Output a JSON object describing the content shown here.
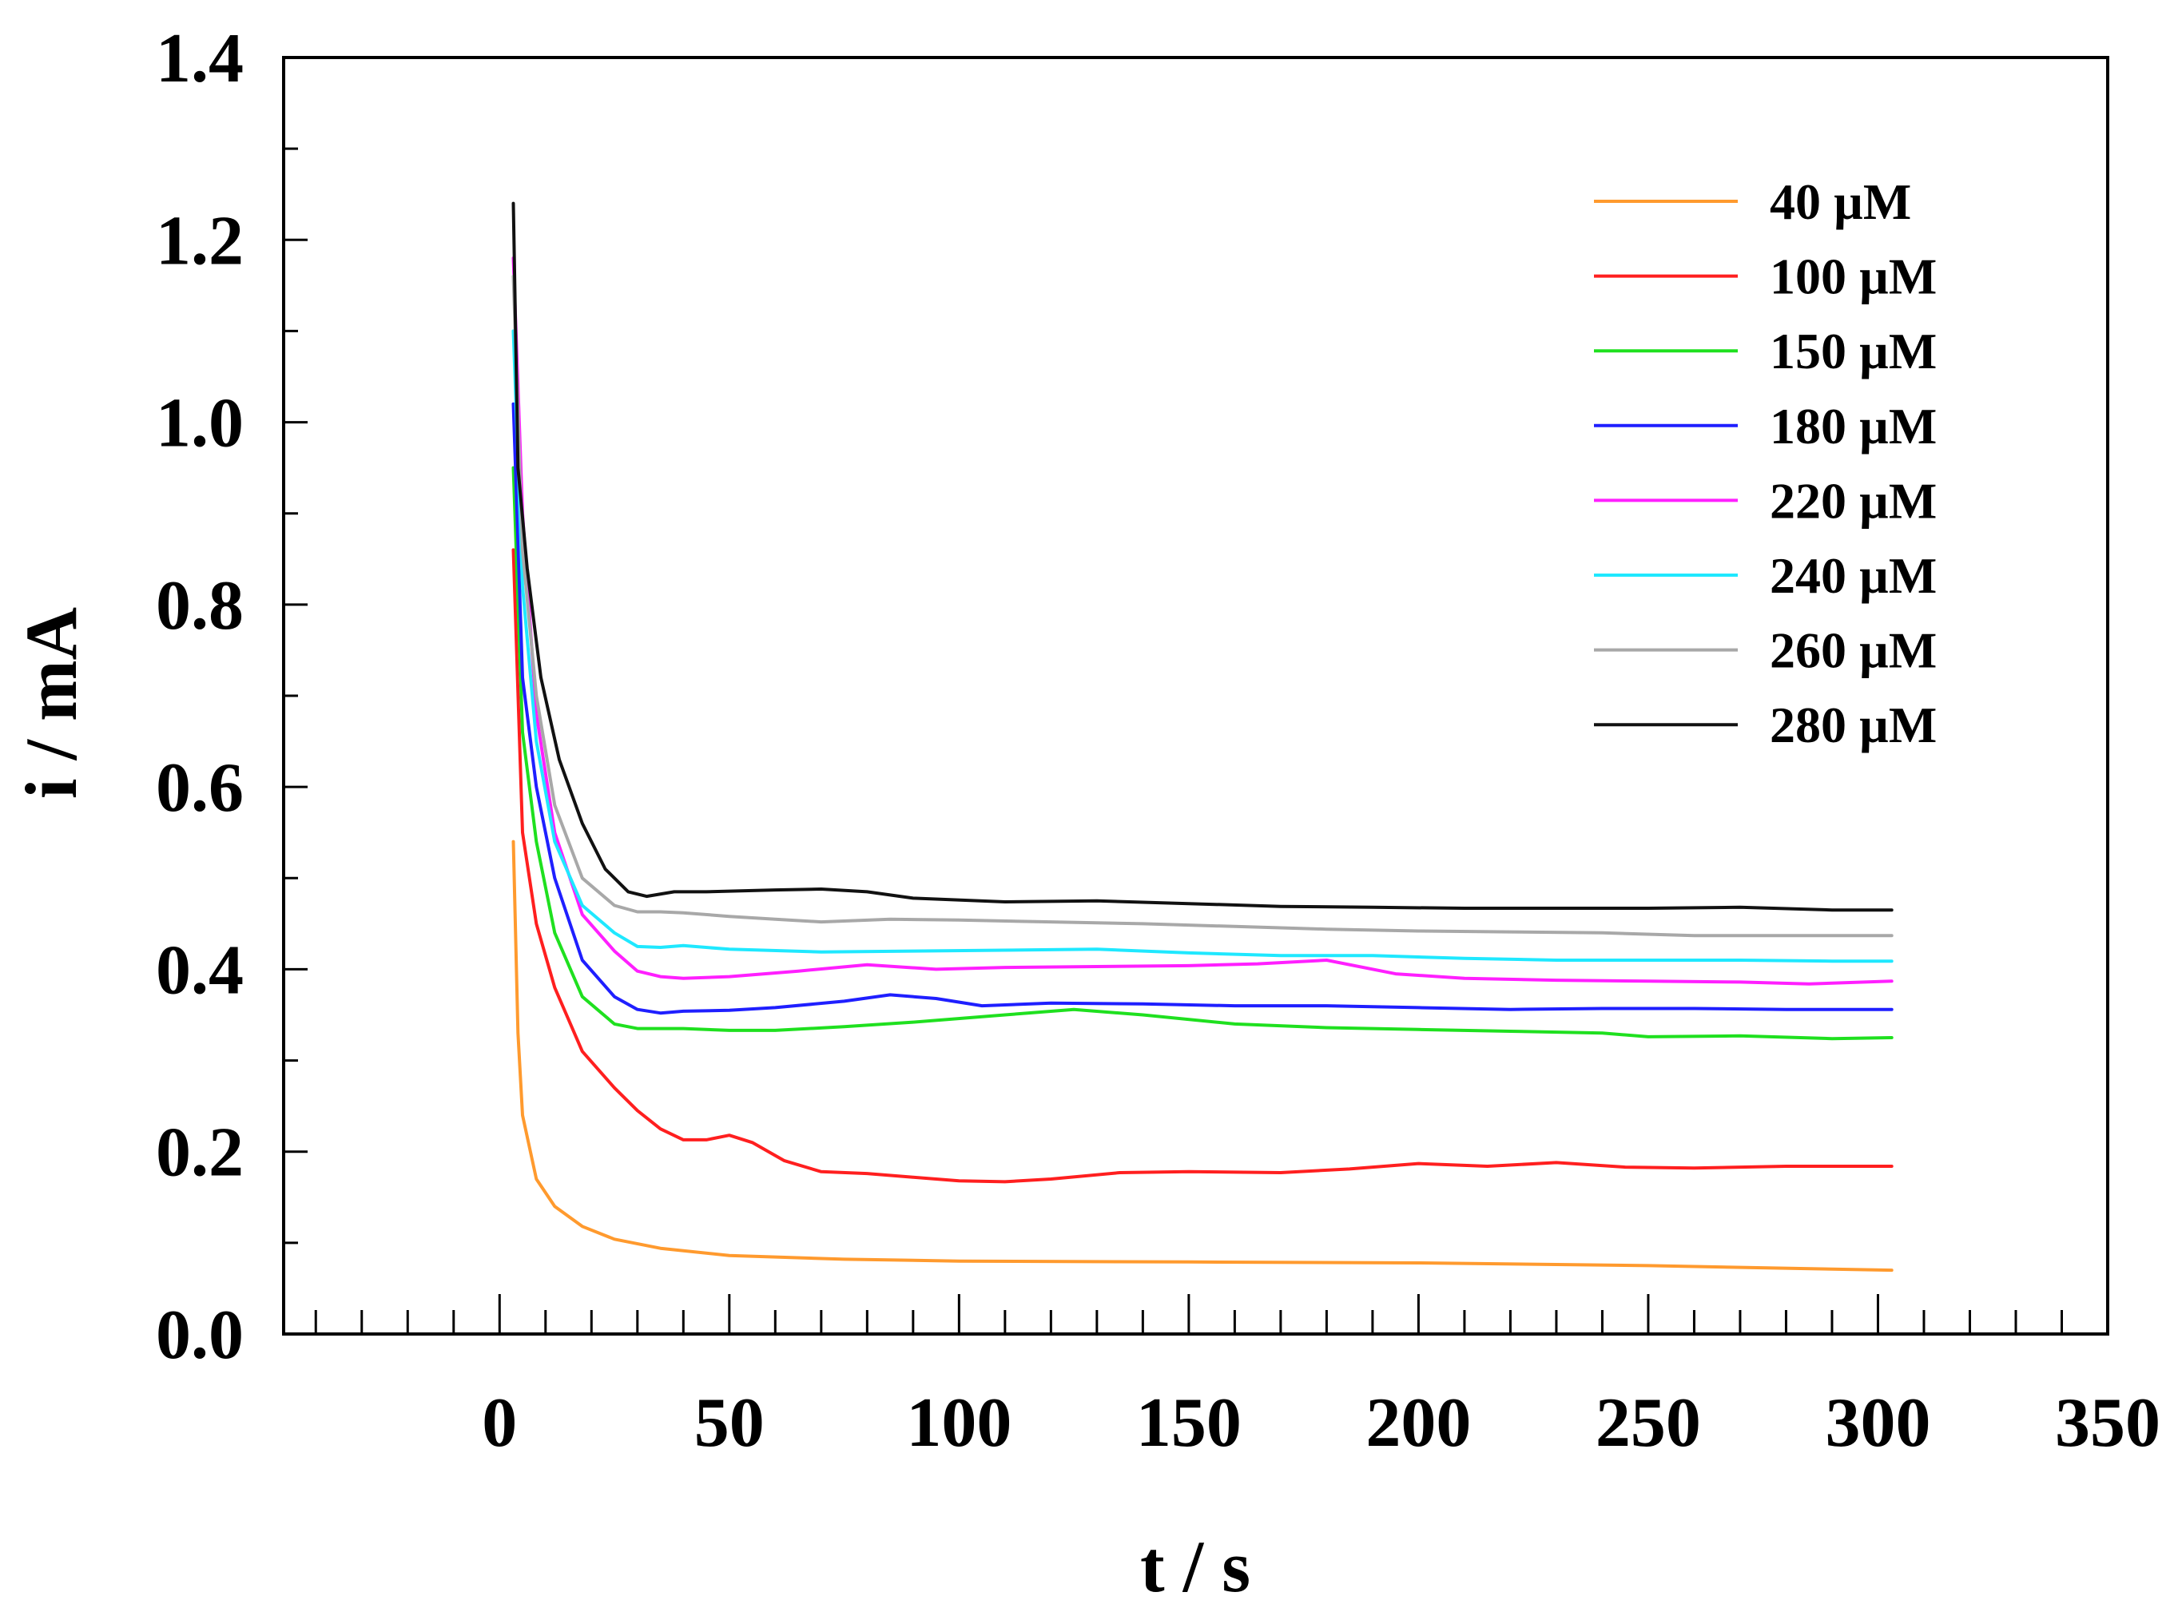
{
  "chart_data": {
    "type": "line",
    "title": "",
    "xlabel": "t / s",
    "ylabel": "i / mA",
    "xlim": [
      -47,
      350
    ],
    "ylim": [
      0,
      1.4
    ],
    "xticks": [
      0,
      50,
      100,
      150,
      200,
      250,
      300,
      350
    ],
    "xtick_labels": [
      "0",
      "50",
      "100",
      "150",
      "200",
      "250",
      "300",
      "350"
    ],
    "yticks": [
      0.0,
      0.2,
      0.4,
      0.6,
      0.8,
      1.0,
      1.2,
      1.4
    ],
    "ytick_labels": [
      "0.0",
      "0.2",
      "0.4",
      "0.6",
      "0.8",
      "1.0",
      "1.2",
      "1.4"
    ],
    "grid": false,
    "legend_position": "top-right",
    "series": [
      {
        "name": "40 µM",
        "color": "#ff9a2e",
        "x": [
          3,
          4,
          5,
          8,
          12,
          18,
          25,
          35,
          50,
          75,
          100,
          150,
          200,
          250,
          303
        ],
        "y": [
          0.54,
          0.33,
          0.24,
          0.17,
          0.14,
          0.118,
          0.104,
          0.094,
          0.086,
          0.082,
          0.08,
          0.079,
          0.078,
          0.075,
          0.07
        ]
      },
      {
        "name": "100 µM",
        "color": "#ff1f1f",
        "x": [
          3,
          5,
          8,
          12,
          18,
          25,
          30,
          35,
          40,
          45,
          50,
          55,
          62,
          70,
          80,
          90,
          100,
          110,
          120,
          135,
          150,
          170,
          185,
          200,
          215,
          230,
          245,
          260,
          280,
          303
        ],
        "y": [
          0.86,
          0.55,
          0.45,
          0.38,
          0.31,
          0.27,
          0.245,
          0.225,
          0.213,
          0.213,
          0.218,
          0.21,
          0.19,
          0.178,
          0.176,
          0.172,
          0.168,
          0.167,
          0.17,
          0.177,
          0.178,
          0.177,
          0.181,
          0.187,
          0.184,
          0.188,
          0.183,
          0.182,
          0.184,
          0.184
        ]
      },
      {
        "name": "150 µM",
        "color": "#1fe01f",
        "x": [
          3,
          5,
          8,
          12,
          18,
          25,
          30,
          40,
          50,
          60,
          75,
          90,
          110,
          125,
          140,
          160,
          180,
          200,
          220,
          240,
          250,
          270,
          290,
          303
        ],
        "y": [
          0.95,
          0.66,
          0.54,
          0.44,
          0.37,
          0.34,
          0.335,
          0.335,
          0.333,
          0.333,
          0.337,
          0.342,
          0.35,
          0.356,
          0.35,
          0.34,
          0.336,
          0.334,
          0.332,
          0.33,
          0.326,
          0.327,
          0.324,
          0.325
        ]
      },
      {
        "name": "180 µM",
        "color": "#1f1fff",
        "x": [
          3,
          5,
          8,
          12,
          18,
          25,
          30,
          35,
          40,
          50,
          60,
          75,
          85,
          95,
          105,
          120,
          140,
          160,
          180,
          200,
          220,
          240,
          260,
          280,
          303
        ],
        "y": [
          1.02,
          0.72,
          0.6,
          0.5,
          0.41,
          0.37,
          0.356,
          0.352,
          0.354,
          0.355,
          0.358,
          0.365,
          0.372,
          0.368,
          0.36,
          0.363,
          0.362,
          0.36,
          0.36,
          0.358,
          0.356,
          0.357,
          0.357,
          0.356,
          0.356
        ]
      },
      {
        "name": "220 µM",
        "color": "#ff1fff",
        "x": [
          3,
          5,
          8,
          12,
          18,
          25,
          30,
          35,
          40,
          50,
          65,
          80,
          95,
          110,
          130,
          150,
          165,
          180,
          195,
          210,
          230,
          250,
          270,
          285,
          303
        ],
        "y": [
          1.18,
          0.9,
          0.68,
          0.55,
          0.46,
          0.42,
          0.398,
          0.392,
          0.39,
          0.392,
          0.398,
          0.405,
          0.4,
          0.402,
          0.403,
          0.404,
          0.406,
          0.41,
          0.395,
          0.39,
          0.388,
          0.387,
          0.386,
          0.384,
          0.387
        ]
      },
      {
        "name": "240 µM",
        "color": "#1fe8ff",
        "x": [
          3,
          5,
          8,
          12,
          18,
          25,
          30,
          35,
          40,
          50,
          70,
          90,
          110,
          130,
          150,
          170,
          190,
          210,
          230,
          250,
          270,
          290,
          303
        ],
        "y": [
          1.1,
          0.82,
          0.65,
          0.54,
          0.47,
          0.44,
          0.425,
          0.424,
          0.426,
          0.422,
          0.419,
          0.42,
          0.421,
          0.422,
          0.418,
          0.415,
          0.415,
          0.412,
          0.41,
          0.41,
          0.41,
          0.409,
          0.409
        ]
      },
      {
        "name": "260 µM",
        "color": "#a8a8a8",
        "x": [
          3,
          5,
          8,
          12,
          18,
          25,
          30,
          35,
          40,
          50,
          60,
          70,
          85,
          100,
          120,
          140,
          160,
          180,
          200,
          220,
          240,
          260,
          280,
          303
        ],
        "y": [
          1.16,
          0.86,
          0.7,
          0.58,
          0.5,
          0.47,
          0.463,
          0.463,
          0.462,
          0.458,
          0.455,
          0.452,
          0.455,
          0.454,
          0.452,
          0.45,
          0.447,
          0.444,
          0.442,
          0.441,
          0.44,
          0.437,
          0.437,
          0.437
        ]
      },
      {
        "name": "280 µM",
        "color": "#111111",
        "x": [
          3,
          4,
          6,
          9,
          13,
          18,
          23,
          28,
          32,
          38,
          45,
          60,
          70,
          80,
          90,
          110,
          130,
          150,
          170,
          190,
          210,
          230,
          250,
          270,
          290,
          303
        ],
        "y": [
          1.24,
          0.95,
          0.84,
          0.72,
          0.63,
          0.56,
          0.51,
          0.485,
          0.48,
          0.485,
          0.485,
          0.487,
          0.488,
          0.485,
          0.478,
          0.474,
          0.475,
          0.472,
          0.469,
          0.468,
          0.467,
          0.467,
          0.467,
          0.468,
          0.465,
          0.465
        ]
      }
    ]
  }
}
